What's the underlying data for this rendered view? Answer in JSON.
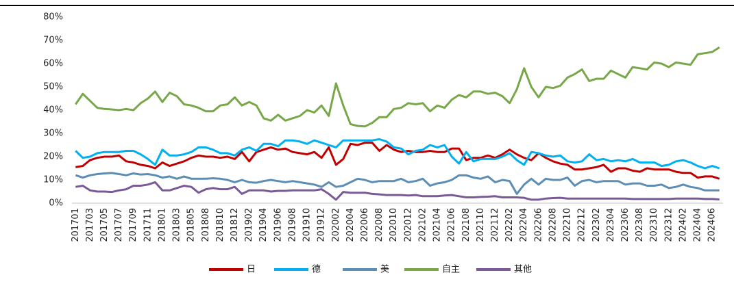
{
  "chart_data": {
    "type": "line",
    "categories": [
      "201701",
      null,
      "201703",
      null,
      "201705",
      null,
      "201707",
      null,
      "201709",
      null,
      "201711",
      null,
      "201801",
      null,
      "201803",
      null,
      "201805",
      null,
      "201808",
      null,
      "201810",
      null,
      "201812",
      null,
      "201902",
      null,
      "201904",
      null,
      "201906",
      null,
      "201908",
      null,
      "201910",
      null,
      "201912",
      null,
      "202002",
      null,
      "202004",
      null,
      "202006",
      null,
      "202008",
      null,
      "202010",
      null,
      "202012",
      null,
      "202102",
      null,
      "202104",
      null,
      "202106",
      null,
      "202108",
      null,
      "202110",
      null,
      "202112",
      null,
      "202202",
      null,
      "202204",
      null,
      "202206",
      null,
      "202208",
      null,
      "202210",
      null,
      "202212",
      null,
      "202302",
      null,
      "202304",
      null,
      "202306",
      null,
      "202308",
      null,
      "202310",
      null,
      "202312",
      null,
      "202402",
      null,
      "202404",
      null,
      "202406",
      null
    ],
    "series": [
      {
        "name": "日",
        "color": "#c00000",
        "values": [
          15.5,
          16,
          18.5,
          19.5,
          20,
          20,
          20.5,
          18,
          17.5,
          16.5,
          16,
          15,
          17.5,
          16,
          17,
          18,
          19.5,
          20.5,
          20,
          20,
          19.5,
          20,
          19,
          22,
          18,
          22,
          23,
          24,
          23,
          23.5,
          22,
          21.5,
          21,
          22,
          19.5,
          24,
          16.5,
          19,
          25.5,
          25,
          26,
          26,
          22.5,
          25,
          23,
          22,
          22.5,
          22,
          22,
          22.5,
          22,
          22,
          23.5,
          23.5,
          18.5,
          19.5,
          19.5,
          20.5,
          19.5,
          21,
          23,
          21,
          19.5,
          18.5,
          21.5,
          19.5,
          18,
          17,
          16.5,
          14.5,
          14.5,
          15,
          15.5,
          16.5,
          13.5,
          15,
          15,
          14,
          13.5,
          15,
          14.5,
          14.5,
          14.5,
          13.5,
          13,
          13,
          11,
          11.5,
          11.5,
          10.5
        ]
      },
      {
        "name": "德",
        "color": "#00b0f0",
        "values": [
          22.5,
          19.5,
          20,
          21.5,
          22,
          22,
          22,
          22.5,
          22.5,
          21,
          19,
          16.5,
          23,
          20.5,
          20.5,
          21,
          22,
          24,
          24,
          23,
          21.5,
          21.5,
          20.5,
          23,
          24,
          22.5,
          25.5,
          25.5,
          24.5,
          27,
          27,
          26.5,
          25.5,
          27,
          26,
          25,
          24,
          27,
          27,
          27,
          27,
          27,
          27.5,
          26.5,
          24,
          23.5,
          21,
          22.5,
          23,
          25,
          24,
          25,
          20,
          17,
          22,
          18,
          19,
          19,
          19,
          20,
          21.5,
          18.5,
          16.5,
          22,
          21.5,
          20.5,
          20,
          20.5,
          18,
          17.5,
          18,
          21,
          18.5,
          19,
          18,
          18.5,
          18,
          19,
          17.5,
          17.5,
          17.5,
          16,
          16.5,
          18,
          18.5,
          17.5,
          16,
          15,
          16,
          15
        ]
      },
      {
        "name": "美",
        "color": "#5b8db5",
        "values": [
          12,
          11,
          12,
          12.5,
          12.8,
          13,
          12.5,
          12,
          12.8,
          12.3,
          12.5,
          12,
          11,
          11.5,
          10.5,
          11.5,
          10.5,
          10.5,
          10.5,
          10.7,
          10.5,
          10,
          9,
          10,
          9,
          8.8,
          9.5,
          10,
          9.5,
          9,
          9.5,
          9,
          8.5,
          8,
          7,
          9,
          7,
          7.5,
          9,
          10.5,
          10,
          9,
          9.5,
          9.5,
          9.5,
          10.5,
          9,
          9.5,
          10.5,
          7.5,
          8.5,
          9,
          10,
          12,
          12,
          11,
          10.5,
          11.5,
          9,
          10,
          9.5,
          4,
          8,
          10.5,
          8,
          10.5,
          10,
          10,
          11,
          7.5,
          9.5,
          10,
          9,
          9.5,
          9.5,
          9.5,
          8,
          8.5,
          8.5,
          7.5,
          7.5,
          8,
          6.5,
          7,
          8,
          7,
          6.5,
          5.5,
          5.5,
          5.5
        ]
      },
      {
        "name": "自主",
        "color": "#77a748",
        "values": [
          42.5,
          47,
          44,
          41,
          40.5,
          40.3,
          40,
          40.5,
          40,
          43,
          45,
          48,
          43.5,
          47.5,
          46,
          42.5,
          42,
          41,
          39.5,
          39.5,
          42,
          42.5,
          45.5,
          42,
          43.5,
          42,
          36.5,
          35.5,
          38,
          35.5,
          36.5,
          37.5,
          40,
          39,
          42,
          37.5,
          51.5,
          42,
          34,
          33.2,
          33,
          34.5,
          37,
          37,
          40.5,
          41,
          43,
          42.5,
          43,
          39.5,
          42,
          41,
          44.5,
          46.5,
          45.5,
          48,
          48,
          47,
          47.5,
          46,
          43,
          49,
          58,
          50,
          45.5,
          50,
          49.5,
          50.5,
          54,
          55.5,
          57.5,
          52.5,
          53.5,
          53.5,
          57,
          55.5,
          54,
          58.5,
          58,
          57.5,
          60.5,
          60,
          58.5,
          60.5,
          60,
          59.5,
          64,
          64.5,
          65,
          67
        ]
      },
      {
        "name": "其他",
        "color": "#7a5a96",
        "values": [
          7,
          7.5,
          5.5,
          5,
          5,
          4.8,
          5.5,
          6,
          7.5,
          7.5,
          8,
          9,
          5.5,
          5.5,
          6.5,
          7.5,
          7,
          4.5,
          6,
          6.5,
          6,
          6,
          7,
          4,
          5.5,
          5.5,
          5.5,
          5,
          5.3,
          5.3,
          5.5,
          5.5,
          5.5,
          5.5,
          6,
          4,
          1.5,
          4.8,
          4.5,
          4.5,
          4.5,
          4,
          3.8,
          3.5,
          3.5,
          3.5,
          3.3,
          3.5,
          3,
          3,
          3,
          3.3,
          3.5,
          3,
          2.5,
          2.5,
          2.7,
          2.8,
          3,
          2.5,
          2.5,
          2.5,
          2.3,
          1.5,
          1.5,
          2,
          2.2,
          2.3,
          2,
          2,
          2,
          2,
          2,
          2,
          2,
          2,
          2,
          1.8,
          1.8,
          1.8,
          1.8,
          1.8,
          1.8,
          2,
          2,
          2,
          2,
          1.8,
          1.8,
          1.6
        ]
      }
    ],
    "ylim": [
      0,
      80
    ],
    "yticks": [
      {
        "value": 0,
        "label": "0%"
      },
      {
        "value": 10,
        "label": "10%"
      },
      {
        "value": 20,
        "label": "20%"
      },
      {
        "value": 30,
        "label": "30%"
      },
      {
        "value": 40,
        "label": "40%"
      },
      {
        "value": 50,
        "label": "50%"
      },
      {
        "value": 60,
        "label": "60%"
      },
      {
        "value": 70,
        "label": "70%"
      },
      {
        "value": 80,
        "label": "80%"
      }
    ],
    "legend": "bottom"
  }
}
